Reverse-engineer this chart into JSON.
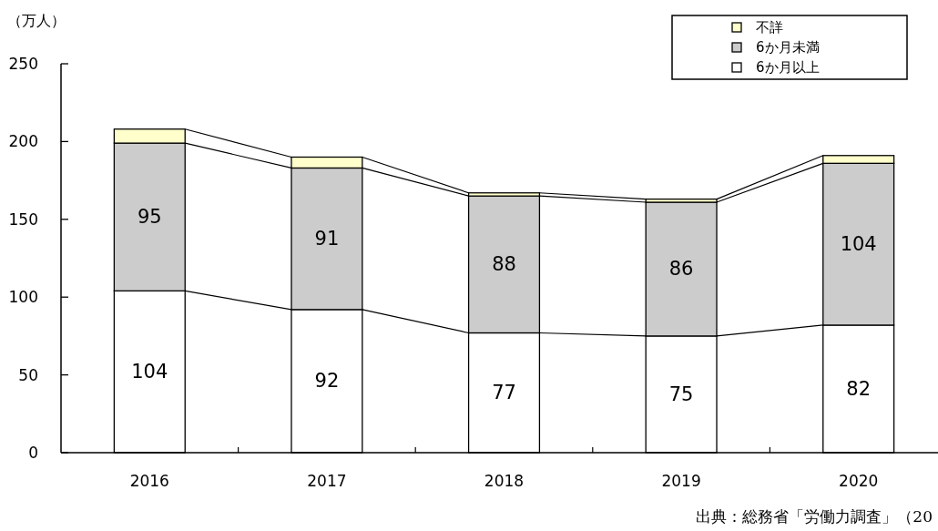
{
  "chart_data": {
    "type": "bar",
    "stacked": true,
    "ylabel": "（万人）",
    "categories": [
      "2016",
      "2017",
      "2018",
      "2019",
      "2020"
    ],
    "series": [
      {
        "name": "6か月以上",
        "color": "#ffffff",
        "values": [
          104,
          92,
          77,
          75,
          82
        ],
        "value_labels": [
          "104",
          "92",
          "77",
          "75",
          "82"
        ]
      },
      {
        "name": "6か月未満",
        "color": "#cccccc",
        "values": [
          95,
          91,
          88,
          86,
          104
        ],
        "value_labels": [
          "95",
          "91",
          "88",
          "86",
          "104"
        ]
      },
      {
        "name": "不詳",
        "color": "#ffffcc",
        "values": [
          9,
          7,
          2,
          2,
          5
        ]
      }
    ],
    "ylim": [
      0,
      250
    ],
    "yticks": [
      0,
      50,
      100,
      150,
      200,
      250
    ],
    "legend": "top right",
    "annotations": [
      "出典：総務省「労働力調査」（20"
    ]
  }
}
